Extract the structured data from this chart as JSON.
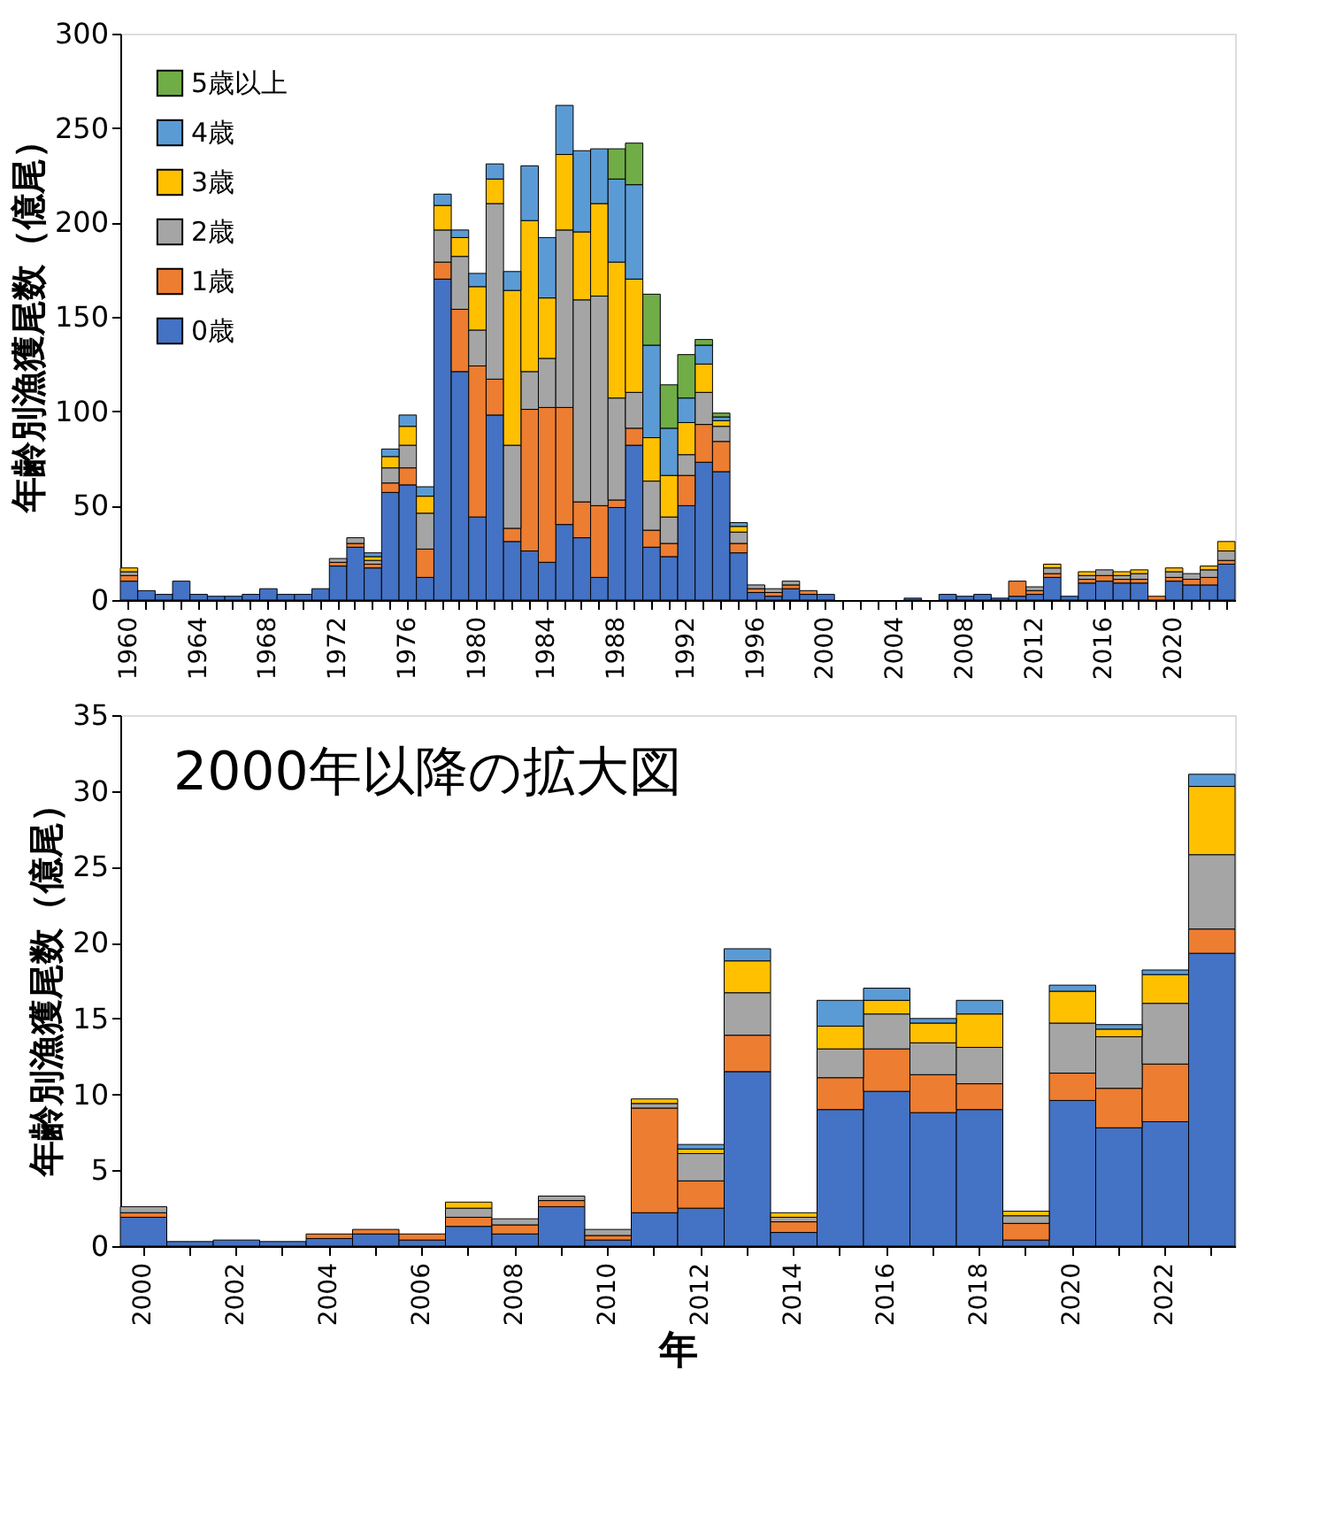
{
  "chart_data": [
    {
      "type": "bar",
      "stacked": true,
      "ylabel": "年齢別漁獲尾数（億尾）",
      "legend": "top left",
      "grid": false,
      "ylim": [
        0,
        300
      ],
      "yticks": [
        0,
        50,
        100,
        150,
        200,
        250,
        300
      ],
      "categories": [
        "1960",
        null,
        null,
        null,
        "1964",
        null,
        null,
        null,
        "1968",
        null,
        null,
        null,
        "1972",
        null,
        null,
        null,
        "1976",
        null,
        null,
        null,
        "1980",
        null,
        null,
        null,
        "1984",
        null,
        null,
        null,
        "1988",
        null,
        null,
        null,
        "1992",
        null,
        null,
        null,
        "1996",
        null,
        null,
        null,
        "2000",
        null,
        null,
        null,
        "2004",
        null,
        null,
        null,
        "2008",
        null,
        null,
        null,
        "2012",
        null,
        null,
        null,
        "2016",
        null,
        null,
        null,
        "2020",
        null,
        null,
        null
      ],
      "series": [
        {
          "name": "0歳",
          "color": "#4472c4",
          "values": [
            10,
            5,
            3,
            10,
            3,
            2,
            2,
            3,
            6,
            3,
            3,
            6,
            18,
            28,
            17,
            57,
            61,
            12,
            170,
            121,
            44,
            98,
            31,
            26,
            20,
            40,
            33,
            12,
            49,
            82,
            28,
            23,
            50,
            73,
            68,
            25,
            4,
            2,
            6,
            3,
            3,
            null,
            null,
            null,
            null,
            1,
            null,
            3,
            2,
            3,
            1,
            2,
            3,
            12,
            2,
            9,
            10,
            9,
            9,
            null,
            10,
            8,
            8,
            19
          ]
        },
        {
          "name": "1歳",
          "color": "#ed7d31",
          "values": [
            3,
            null,
            null,
            null,
            null,
            null,
            null,
            null,
            null,
            null,
            null,
            null,
            2,
            2,
            2,
            5,
            9,
            15,
            9,
            33,
            80,
            19,
            7,
            75,
            82,
            62,
            19,
            38,
            4,
            9,
            9,
            7,
            16,
            20,
            16,
            5,
            2,
            2,
            2,
            2,
            null,
            null,
            null,
            null,
            null,
            null,
            null,
            null,
            null,
            null,
            null,
            8,
            2,
            2,
            null,
            2,
            3,
            2,
            2,
            2,
            2,
            3,
            4,
            2
          ]
        },
        {
          "name": "2歳",
          "color": "#a5a5a5",
          "values": [
            2,
            null,
            null,
            null,
            null,
            null,
            null,
            null,
            null,
            null,
            null,
            null,
            2,
            3,
            2,
            8,
            12,
            19,
            17,
            28,
            19,
            93,
            44,
            20,
            26,
            94,
            107,
            111,
            54,
            19,
            26,
            14,
            11,
            17,
            8,
            6,
            2,
            2,
            2,
            null,
            null,
            null,
            null,
            null,
            null,
            null,
            null,
            null,
            null,
            null,
            null,
            null,
            2,
            3,
            null,
            2,
            3,
            2,
            3,
            null,
            3,
            3,
            4,
            5
          ]
        },
        {
          "name": "3歳",
          "color": "#ffc000",
          "values": [
            2,
            null,
            null,
            null,
            null,
            null,
            null,
            null,
            null,
            null,
            null,
            null,
            null,
            null,
            2,
            6,
            10,
            9,
            13,
            10,
            23,
            13,
            82,
            80,
            32,
            40,
            36,
            49,
            72,
            60,
            23,
            22,
            17,
            15,
            3,
            3,
            null,
            null,
            null,
            null,
            null,
            null,
            null,
            null,
            null,
            null,
            null,
            null,
            null,
            null,
            null,
            null,
            null,
            2,
            null,
            2,
            null,
            2,
            2,
            null,
            2,
            null,
            2,
            5
          ]
        },
        {
          "name": "4歳",
          "color": "#5b9bd5",
          "values": [
            null,
            null,
            null,
            null,
            null,
            null,
            null,
            null,
            null,
            null,
            null,
            null,
            null,
            null,
            2,
            4,
            6,
            5,
            6,
            4,
            7,
            8,
            10,
            29,
            32,
            26,
            43,
            29,
            44,
            50,
            49,
            25,
            13,
            10,
            2,
            2,
            null,
            null,
            null,
            null,
            null,
            null,
            null,
            null,
            null,
            null,
            null,
            null,
            null,
            null,
            null,
            null,
            null,
            null,
            null,
            null,
            null,
            null,
            null,
            null,
            null,
            null,
            null,
            null
          ]
        },
        {
          "name": "5歳以上",
          "color": "#70ad47",
          "values": [
            null,
            null,
            null,
            null,
            null,
            null,
            null,
            null,
            null,
            null,
            null,
            null,
            null,
            null,
            null,
            null,
            null,
            null,
            null,
            null,
            null,
            null,
            null,
            null,
            null,
            null,
            null,
            null,
            16,
            22,
            27,
            23,
            23,
            3,
            2,
            null,
            null,
            null,
            null,
            null,
            null,
            null,
            null,
            null,
            null,
            null,
            null,
            null,
            null,
            null,
            null,
            null,
            null,
            null,
            null,
            null,
            null,
            null,
            null,
            null,
            null,
            null,
            null,
            null
          ]
        }
      ]
    },
    {
      "type": "bar",
      "stacked": true,
      "ylabel": "年齢別漁獲尾数（億尾）",
      "xlabel": "年",
      "grid": false,
      "ylim": [
        0,
        35
      ],
      "yticks": [
        0,
        5,
        10,
        15,
        20,
        25,
        30,
        35
      ],
      "annotations": [
        "2000年以降の拡大図"
      ],
      "categories": [
        "2000",
        null,
        "2002",
        null,
        "2004",
        null,
        "2006",
        null,
        "2008",
        null,
        "2010",
        null,
        "2012",
        null,
        "2014",
        null,
        "2016",
        null,
        "2018",
        null,
        "2020",
        null,
        "2022",
        null
      ],
      "series": [
        {
          "color": "#4472c4",
          "values": [
            1.9,
            0.3,
            0.4,
            0.3,
            0.5,
            0.8,
            0.4,
            1.3,
            0.8,
            2.6,
            0.4,
            2.2,
            2.5,
            11.5,
            0.9,
            9.0,
            10.2,
            8.8,
            9.0,
            0.4,
            9.6,
            7.8,
            8.2,
            19.3
          ]
        },
        {
          "color": "#ed7d31",
          "values": [
            0.3,
            null,
            null,
            null,
            0.3,
            0.3,
            0.4,
            0.6,
            0.6,
            0.4,
            0.3,
            6.9,
            1.8,
            2.4,
            0.7,
            2.1,
            2.8,
            2.5,
            1.7,
            1.1,
            1.8,
            2.6,
            3.8,
            1.6
          ]
        },
        {
          "color": "#a5a5a5",
          "values": [
            0.4,
            null,
            null,
            null,
            null,
            null,
            null,
            0.6,
            0.4,
            0.3,
            0.4,
            0.3,
            1.8,
            2.8,
            0.3,
            1.9,
            2.3,
            2.1,
            2.4,
            0.5,
            3.3,
            3.4,
            4.0,
            4.9
          ]
        },
        {
          "color": "#ffc000",
          "values": [
            null,
            null,
            null,
            null,
            null,
            null,
            null,
            0.4,
            null,
            null,
            null,
            0.3,
            0.3,
            2.1,
            0.3,
            1.5,
            0.9,
            1.3,
            2.2,
            0.3,
            2.1,
            0.5,
            1.9,
            4.5
          ]
        },
        {
          "color": "#5b9bd5",
          "values": [
            null,
            null,
            null,
            null,
            null,
            null,
            null,
            null,
            null,
            null,
            null,
            null,
            0.3,
            0.8,
            null,
            1.7,
            0.8,
            0.3,
            0.9,
            null,
            0.4,
            0.3,
            0.3,
            0.8
          ]
        }
      ]
    }
  ]
}
